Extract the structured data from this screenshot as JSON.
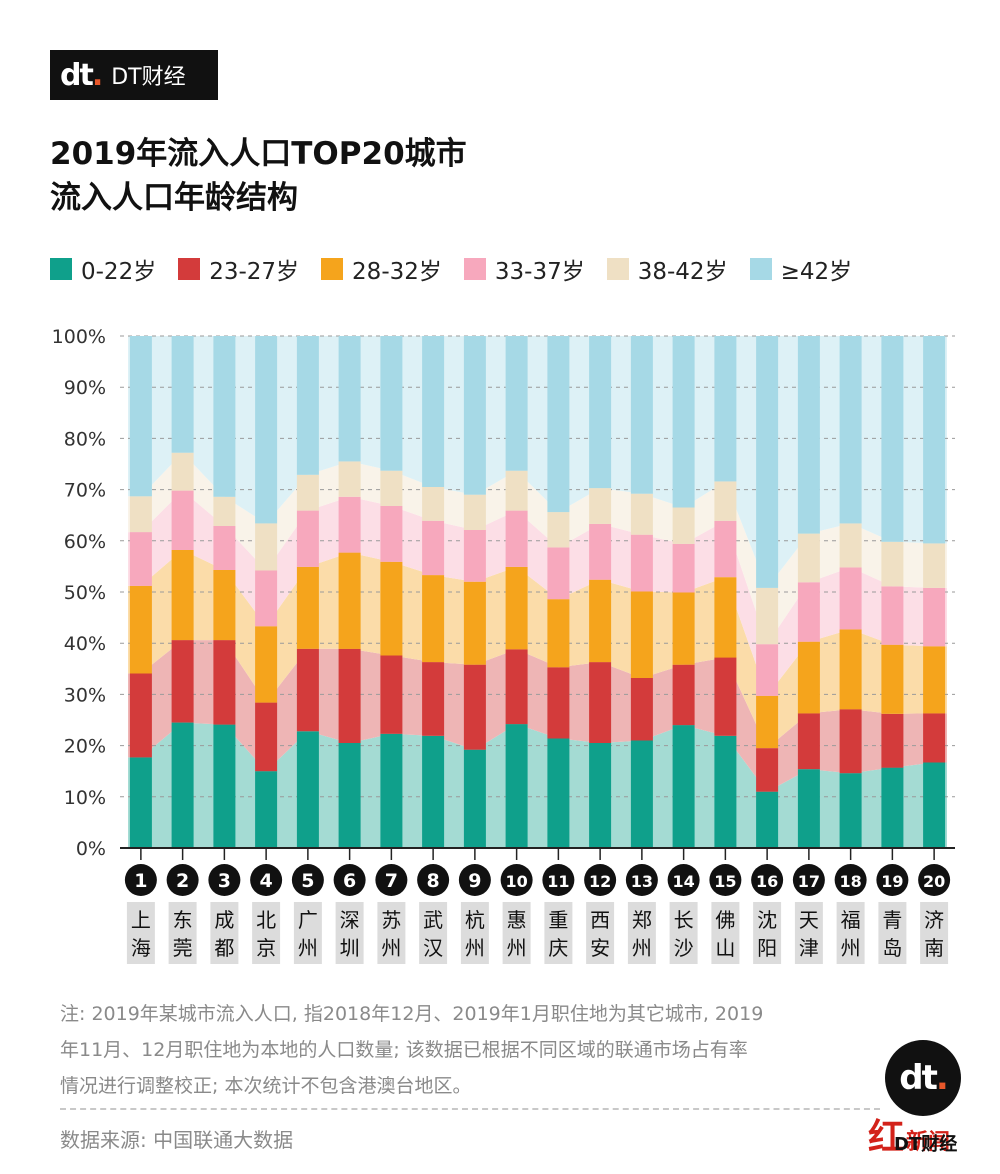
{
  "brand": {
    "mark": "dt",
    "name": "DT财经"
  },
  "title_lines": [
    "2019年流入人口TOP20城市",
    "流入人口年龄结构"
  ],
  "note_lines": [
    "注: 2019年某城市流入人口, 指2018年12月、2019年1月职住地为其它城市, 2019",
    "年11月、12月职住地为本地的人口数量; 该数据已根据不同区域的联通市场占有率",
    "情况进行调整校正; 本次统计不包含港澳台地区。"
  ],
  "source": "数据来源: 中国联通大数据",
  "badge": {
    "hong": "红",
    "rest": "新闻",
    "dt": "DT财经"
  },
  "chart_data": {
    "type": "bar",
    "stacked": true,
    "ylim": [
      0,
      100
    ],
    "yticks": [
      "0%",
      "10%",
      "20%",
      "30%",
      "40%",
      "50%",
      "60%",
      "70%",
      "80%",
      "90%",
      "100%"
    ],
    "ranks": [
      "1",
      "2",
      "3",
      "4",
      "5",
      "6",
      "7",
      "8",
      "9",
      "10",
      "11",
      "12",
      "13",
      "14",
      "15",
      "16",
      "17",
      "18",
      "19",
      "20"
    ],
    "categories": [
      "上海",
      "东莞",
      "成都",
      "北京",
      "广州",
      "深圳",
      "苏州",
      "武汉",
      "杭州",
      "惠州",
      "重庆",
      "西安",
      "郑州",
      "长沙",
      "佛山",
      "沈阳",
      "天津",
      "福州",
      "青岛",
      "济南"
    ],
    "series": [
      {
        "name": "0-22岁",
        "color": "#0fa08b",
        "values": [
          17.7,
          24.5,
          24.1,
          15.0,
          22.8,
          20.5,
          22.3,
          21.9,
          19.2,
          24.2,
          21.4,
          20.5,
          21.0,
          24.0,
          21.9,
          11.0,
          15.4,
          14.6,
          15.7,
          16.7
        ]
      },
      {
        "name": "23-27岁",
        "color": "#d33b3b",
        "values": [
          16.4,
          16.1,
          16.5,
          13.4,
          16.1,
          18.4,
          15.3,
          14.4,
          16.6,
          14.6,
          13.9,
          15.8,
          12.2,
          11.8,
          15.3,
          8.5,
          10.9,
          12.5,
          10.5,
          9.6
        ]
      },
      {
        "name": "28-32岁",
        "color": "#f5a41c",
        "values": [
          17.1,
          17.6,
          13.7,
          14.9,
          16.0,
          18.8,
          18.3,
          17.0,
          16.2,
          16.1,
          13.3,
          16.1,
          16.9,
          14.1,
          15.7,
          10.2,
          14.0,
          15.6,
          13.5,
          13.1
        ]
      },
      {
        "name": "33-37岁",
        "color": "#f7a8bd",
        "values": [
          10.5,
          11.6,
          8.6,
          10.9,
          11.0,
          10.9,
          10.9,
          10.6,
          10.1,
          11.0,
          10.1,
          10.9,
          11.1,
          9.5,
          11.0,
          10.1,
          11.6,
          12.1,
          11.4,
          11.4
        ]
      },
      {
        "name": "38-42岁",
        "color": "#efe0c4",
        "values": [
          7.0,
          7.4,
          5.7,
          9.2,
          7.0,
          6.9,
          6.9,
          6.6,
          6.9,
          7.8,
          6.9,
          7.0,
          8.0,
          7.1,
          7.7,
          11.0,
          9.5,
          8.6,
          8.7,
          8.7
        ]
      },
      {
        "name": "≥42岁",
        "color": "#a6d9e6",
        "values": [
          31.3,
          22.8,
          31.4,
          36.6,
          27.1,
          24.5,
          26.3,
          29.5,
          31.0,
          26.3,
          34.4,
          29.7,
          30.8,
          33.5,
          28.4,
          49.2,
          38.6,
          36.6,
          40.2,
          40.5
        ]
      }
    ]
  }
}
